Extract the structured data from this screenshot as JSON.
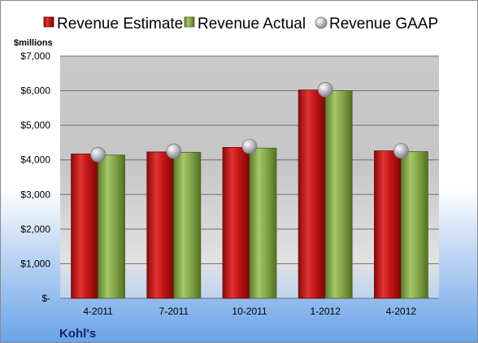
{
  "chart_data": {
    "type": "bar",
    "title": "",
    "ylabel": "$millions",
    "footer": "Kohl's",
    "categories": [
      "4-2011",
      "7-2011",
      "10-2011",
      "1-2012",
      "4-2012"
    ],
    "series": [
      {
        "name": "Revenue Estimate",
        "kind": "bar",
        "color": "#d11c1c",
        "values": [
          4170,
          4230,
          4360,
          6020,
          4260
        ]
      },
      {
        "name": "Revenue Actual",
        "kind": "bar",
        "color": "#8cb04a",
        "values": [
          4140,
          4220,
          4340,
          6000,
          4240
        ]
      },
      {
        "name": "Revenue GAAP",
        "kind": "marker",
        "color": "#b8b8c2",
        "values": [
          4150,
          4250,
          4390,
          6030,
          4260
        ]
      }
    ],
    "ylim": [
      0,
      7000
    ],
    "yticks": [
      0,
      1000,
      2000,
      3000,
      4000,
      5000,
      6000,
      7000
    ],
    "ytick_labels": [
      "$-",
      "$1,000",
      "$2,000",
      "$3,000",
      "$4,000",
      "$5,000",
      "$6,000",
      "$7,000"
    ],
    "grid": true,
    "legend": "top"
  }
}
